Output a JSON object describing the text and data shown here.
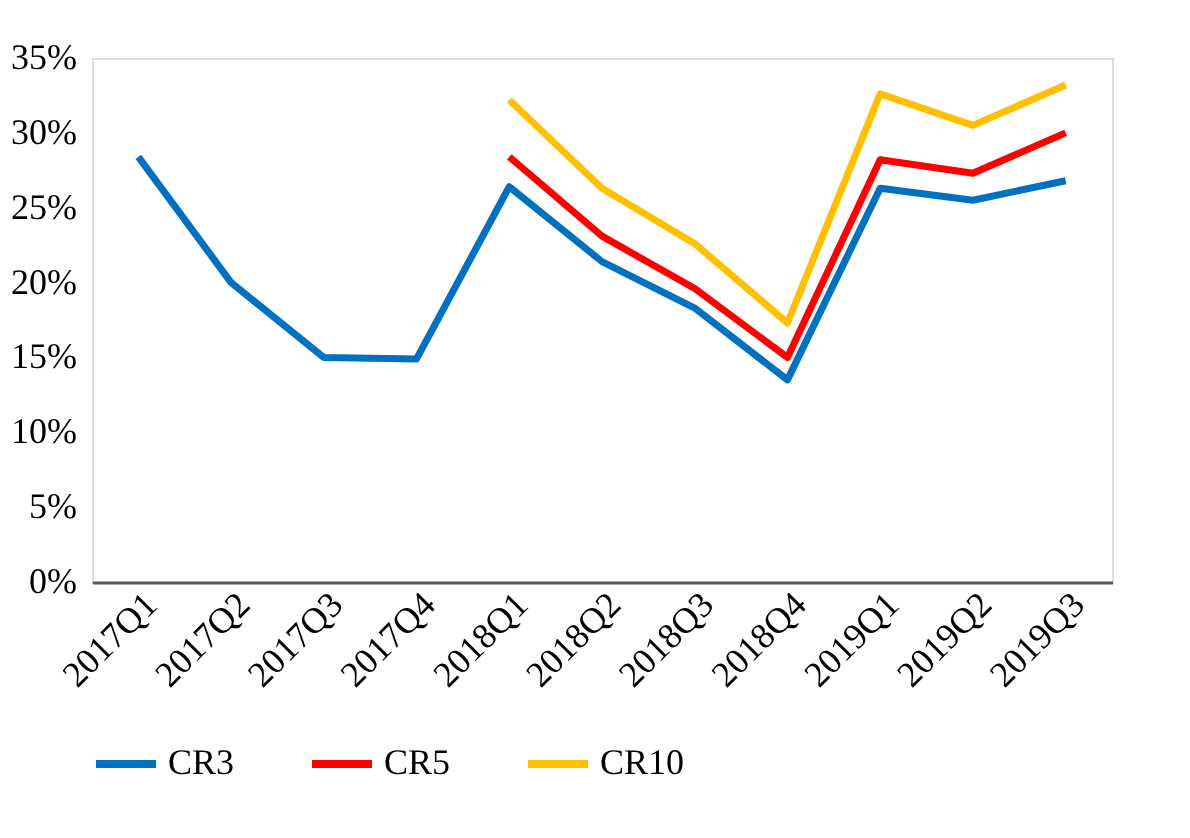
{
  "chart_data": {
    "type": "line",
    "categories": [
      "2017Q1",
      "2017Q2",
      "2017Q3",
      "2017Q4",
      "2018Q1",
      "2018Q2",
      "2018Q3",
      "2018Q4",
      "2019Q1",
      "2019Q2",
      "2019Q3"
    ],
    "series": [
      {
        "name": "CR3",
        "color": "#0070c0",
        "values": [
          28.4,
          20.0,
          15.0,
          14.9,
          26.4,
          21.4,
          18.3,
          13.5,
          26.3,
          25.5,
          26.8
        ]
      },
      {
        "name": "CR5",
        "color": "#ff0000",
        "values": [
          null,
          null,
          null,
          null,
          28.4,
          23.1,
          19.6,
          15.0,
          28.2,
          27.3,
          30.0
        ]
      },
      {
        "name": "CR10",
        "color": "#ffc000",
        "values": [
          null,
          null,
          null,
          null,
          32.2,
          26.3,
          22.6,
          17.3,
          32.6,
          30.5,
          33.2
        ]
      }
    ],
    "ylim": [
      0,
      35
    ],
    "yticks": [
      {
        "value": 0,
        "label": "0%"
      },
      {
        "value": 5,
        "label": "5%"
      },
      {
        "value": 10,
        "label": "10%"
      },
      {
        "value": 15,
        "label": "15%"
      },
      {
        "value": 20,
        "label": "20%"
      },
      {
        "value": 25,
        "label": "25%"
      },
      {
        "value": 30,
        "label": "30%"
      },
      {
        "value": 35,
        "label": "35%"
      }
    ],
    "grid": false,
    "legend": "bottom",
    "marker": "none",
    "line_style": "solid"
  }
}
